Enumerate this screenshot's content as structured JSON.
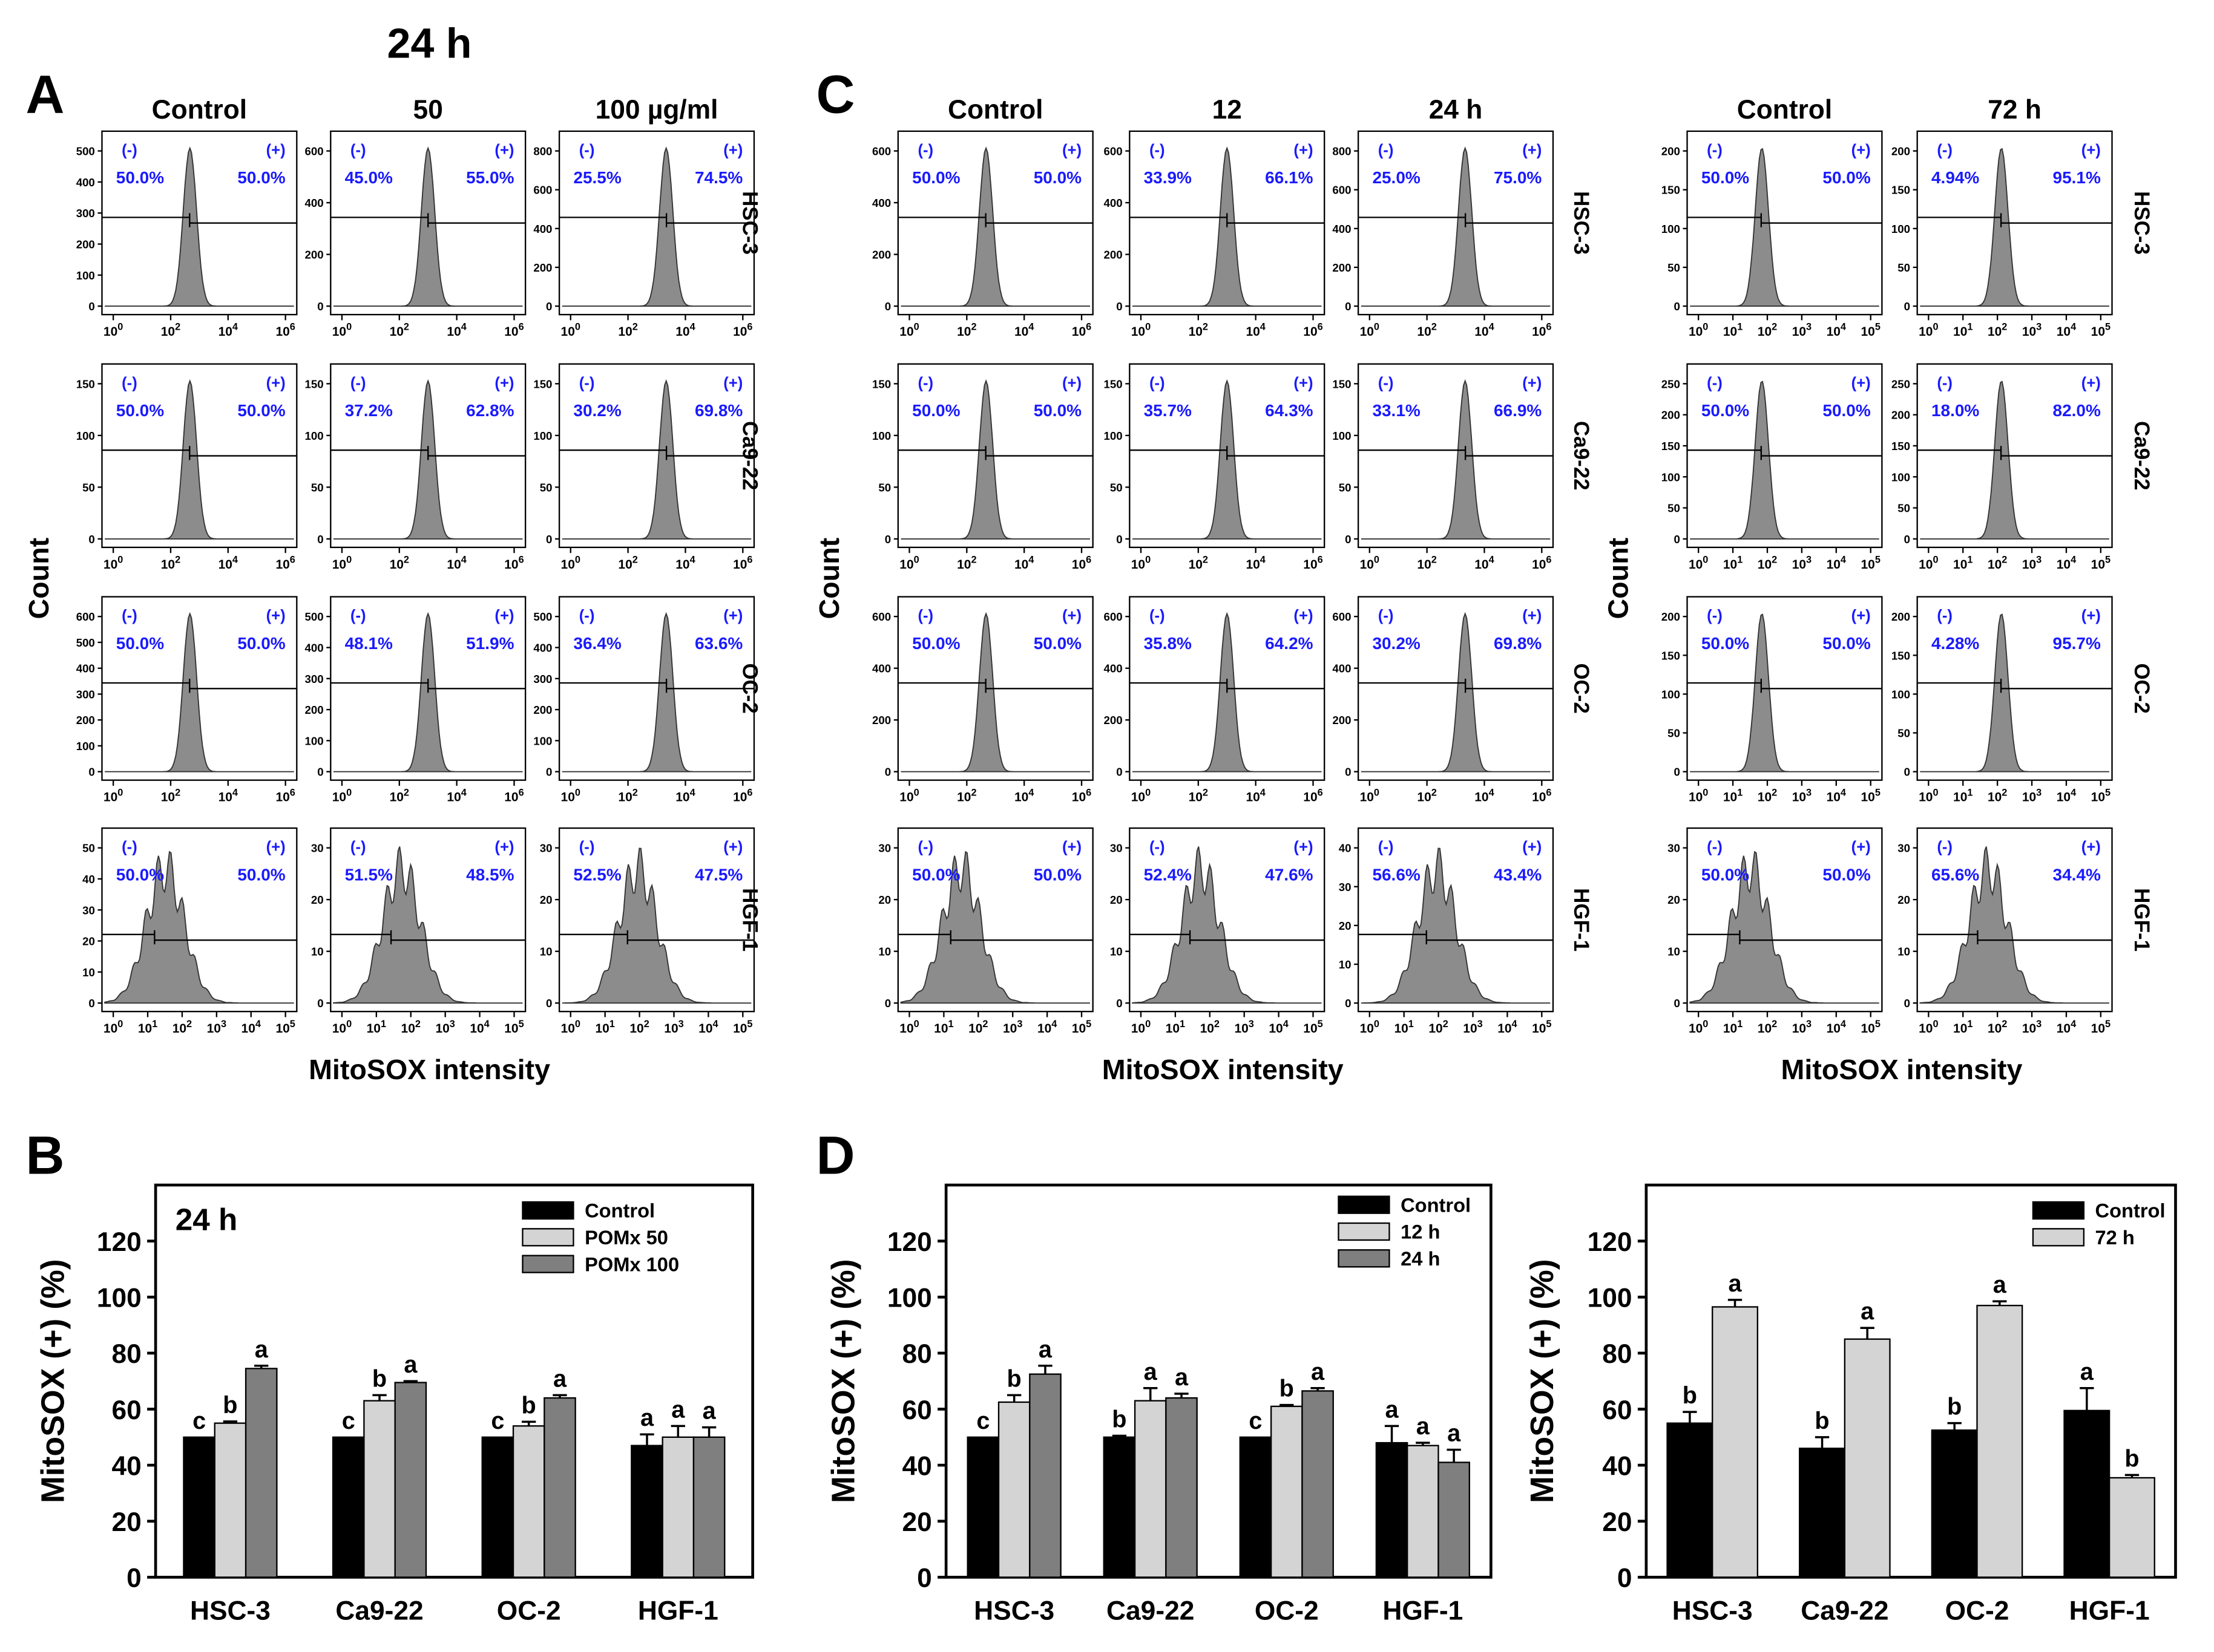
{
  "figure": {
    "panel_letters": [
      "A",
      "B",
      "C",
      "D"
    ],
    "header_24h": "24 h",
    "flow_xlabel": "MitoSOX intensity",
    "flow_ylabel": "Count",
    "bar_ylabel": "MitoSOX (+) (%)",
    "neg_label": "(-)",
    "pos_label": "(+)"
  },
  "panelA": {
    "columns": [
      "Control",
      "50",
      "100 µg/ml"
    ],
    "rows": [
      "HSC-3",
      "Ca9-22",
      "OC-2",
      "HGF-1"
    ],
    "neg_pct": [
      [
        "50.0%",
        "45.0%",
        "25.5%"
      ],
      [
        "50.0%",
        "37.2%",
        "30.2%"
      ],
      [
        "50.0%",
        "48.1%",
        "36.4%"
      ],
      [
        "50.0%",
        "51.5%",
        "52.5%"
      ]
    ],
    "pos_pct": [
      [
        "50.0%",
        "55.0%",
        "74.5%"
      ],
      [
        "50.0%",
        "62.8%",
        "69.8%"
      ],
      [
        "50.0%",
        "51.9%",
        "63.6%"
      ],
      [
        "50.0%",
        "48.5%",
        "47.5%"
      ]
    ],
    "y_ticks": [
      [
        [
          "0",
          "100",
          "200",
          "300",
          "400",
          "500"
        ],
        [
          "0",
          "200",
          "400",
          "600"
        ],
        [
          "0",
          "200",
          "400",
          "600",
          "800"
        ]
      ],
      [
        [
          "0",
          "50",
          "100",
          "150"
        ],
        [
          "0",
          "50",
          "100",
          "150"
        ],
        [
          "0",
          "50",
          "100",
          "150"
        ]
      ],
      [
        [
          "0",
          "100",
          "200",
          "300",
          "400",
          "500",
          "600"
        ],
        [
          "0",
          "100",
          "200",
          "300",
          "400",
          "500"
        ],
        [
          "0",
          "100",
          "200",
          "300",
          "400",
          "500"
        ]
      ],
      [
        [
          "0",
          "10",
          "20",
          "30",
          "40",
          "50"
        ],
        [
          "0",
          "10",
          "20",
          "30"
        ],
        [
          "0",
          "10",
          "20",
          "30"
        ]
      ]
    ],
    "x_exponents": [
      [
        "0",
        "2",
        "4",
        "6"
      ],
      [
        "0",
        "2",
        "4",
        "6"
      ],
      [
        "0",
        "2",
        "4",
        "6"
      ],
      [
        "0",
        "1",
        "2",
        "3",
        "4",
        "5"
      ]
    ]
  },
  "panelC": {
    "columns": [
      "Control",
      "12",
      "24 h"
    ],
    "rows": [
      "HSC-3",
      "Ca9-22",
      "OC-2",
      "HGF-1"
    ],
    "neg_pct": [
      [
        "50.0%",
        "33.9%",
        "25.0%"
      ],
      [
        "50.0%",
        "35.7%",
        "33.1%"
      ],
      [
        "50.0%",
        "35.8%",
        "30.2%"
      ],
      [
        "50.0%",
        "52.4%",
        "56.6%"
      ]
    ],
    "pos_pct": [
      [
        "50.0%",
        "66.1%",
        "75.0%"
      ],
      [
        "50.0%",
        "64.3%",
        "66.9%"
      ],
      [
        "50.0%",
        "64.2%",
        "69.8%"
      ],
      [
        "50.0%",
        "47.6%",
        "43.4%"
      ]
    ],
    "y_ticks": [
      [
        [
          "0",
          "200",
          "400",
          "600"
        ],
        [
          "0",
          "200",
          "400",
          "600"
        ],
        [
          "0",
          "200",
          "400",
          "600",
          "800"
        ]
      ],
      [
        [
          "0",
          "50",
          "100",
          "150"
        ],
        [
          "0",
          "50",
          "100",
          "150"
        ],
        [
          "0",
          "50",
          "100",
          "150"
        ]
      ],
      [
        [
          "0",
          "200",
          "400",
          "600"
        ],
        [
          "0",
          "200",
          "400",
          "600"
        ],
        [
          "0",
          "200",
          "400",
          "600"
        ]
      ],
      [
        [
          "0",
          "10",
          "20",
          "30"
        ],
        [
          "0",
          "10",
          "20",
          "30"
        ],
        [
          "0",
          "10",
          "20",
          "30",
          "40"
        ]
      ]
    ],
    "x_exponents": [
      [
        "0",
        "2",
        "4",
        "6"
      ],
      [
        "0",
        "2",
        "4",
        "6"
      ],
      [
        "0",
        "2",
        "4",
        "6"
      ],
      [
        "0",
        "1",
        "2",
        "3",
        "4",
        "5"
      ]
    ]
  },
  "panelC2": {
    "columns": [
      "Control",
      "72 h"
    ],
    "rows": [
      "HSC-3",
      "Ca9-22",
      "OC-2",
      "HGF-1"
    ],
    "neg_pct": [
      [
        "50.0%",
        "4.94%"
      ],
      [
        "50.0%",
        "18.0%"
      ],
      [
        "50.0%",
        "4.28%"
      ],
      [
        "50.0%",
        "65.6%"
      ]
    ],
    "pos_pct": [
      [
        "50.0%",
        "95.1%"
      ],
      [
        "50.0%",
        "82.0%"
      ],
      [
        "50.0%",
        "95.7%"
      ],
      [
        "50.0%",
        "34.4%"
      ]
    ],
    "y_ticks": [
      [
        [
          "0",
          "50",
          "100",
          "150",
          "200"
        ],
        [
          "0",
          "50",
          "100",
          "150",
          "200"
        ]
      ],
      [
        [
          "0",
          "50",
          "100",
          "150",
          "200",
          "250"
        ],
        [
          "0",
          "50",
          "100",
          "150",
          "200",
          "250"
        ]
      ],
      [
        [
          "0",
          "50",
          "100",
          "150",
          "200"
        ],
        [
          "0",
          "50",
          "100",
          "150",
          "200"
        ]
      ],
      [
        [
          "0",
          "10",
          "20",
          "30"
        ],
        [
          "0",
          "10",
          "20",
          "30"
        ]
      ]
    ],
    "x_exponents": [
      [
        "0",
        "1",
        "2",
        "3",
        "4",
        "5"
      ],
      [
        "0",
        "1",
        "2",
        "3",
        "4",
        "5"
      ],
      [
        "0",
        "1",
        "2",
        "3",
        "4",
        "5"
      ],
      [
        "0",
        "1",
        "2",
        "3",
        "4",
        "5"
      ]
    ]
  },
  "chart_data": [
    {
      "type": "bar",
      "title": "24 h",
      "categories": [
        "HSC-3",
        "Ca9-22",
        "OC-2",
        "HGF-1"
      ],
      "series": [
        {
          "name": "Control",
          "color": "#000000",
          "values": [
            50,
            50,
            50,
            47
          ],
          "errors": [
            0,
            0,
            0,
            4
          ],
          "letters": [
            "c",
            "c",
            "c",
            "a"
          ]
        },
        {
          "name": "POMx 50",
          "color": "#d4d4d4",
          "values": [
            55,
            63,
            54,
            50
          ],
          "errors": [
            0.6,
            2,
            1.5,
            4
          ],
          "letters": [
            "b",
            "b",
            "b",
            "a"
          ]
        },
        {
          "name": "POMx 100",
          "color": "#7f7f7f",
          "values": [
            74.5,
            69.5,
            64,
            50
          ],
          "errors": [
            1,
            0.5,
            1,
            3.5
          ],
          "letters": [
            "a",
            "a",
            "a",
            "a"
          ]
        }
      ],
      "ylabel": "MitoSOX (+) (%)",
      "ylim": [
        0,
        140
      ],
      "yticks": [
        "0",
        "20",
        "40",
        "60",
        "80",
        "100",
        "120"
      ]
    },
    {
      "type": "bar",
      "title": "",
      "categories": [
        "HSC-3",
        "Ca9-22",
        "OC-2",
        "HGF-1"
      ],
      "series": [
        {
          "name": "Control",
          "color": "#000000",
          "values": [
            50,
            50,
            50,
            48
          ],
          "errors": [
            0,
            0.5,
            0,
            6
          ],
          "letters": [
            "c",
            "b",
            "c",
            "a"
          ]
        },
        {
          "name": "12 h",
          "color": "#d4d4d4",
          "values": [
            62.5,
            63,
            61,
            47
          ],
          "errors": [
            2.5,
            4.5,
            0.5,
            1
          ],
          "letters": [
            "b",
            "a",
            "b",
            "a"
          ]
        },
        {
          "name": "24 h",
          "color": "#7f7f7f",
          "values": [
            72.5,
            64,
            66.5,
            41
          ],
          "errors": [
            3,
            1.5,
            1,
            4.5
          ],
          "letters": [
            "a",
            "a",
            "a",
            "a"
          ]
        }
      ],
      "ylabel": "MitoSOX (+) (%)",
      "ylim": [
        0,
        140
      ],
      "yticks": [
        "0",
        "20",
        "40",
        "60",
        "80",
        "100",
        "120"
      ]
    },
    {
      "type": "bar",
      "title": "",
      "categories": [
        "HSC-3",
        "Ca9-22",
        "OC-2",
        "HGF-1"
      ],
      "series": [
        {
          "name": "Control",
          "color": "#000000",
          "values": [
            55,
            46,
            52.5,
            59.5
          ],
          "errors": [
            4,
            4,
            2.5,
            8
          ],
          "letters": [
            "b",
            "b",
            "b",
            "a"
          ]
        },
        {
          "name": "72 h",
          "color": "#d4d4d4",
          "values": [
            96.5,
            85,
            97,
            35.5
          ],
          "errors": [
            2.5,
            4,
            1.5,
            1
          ],
          "letters": [
            "a",
            "a",
            "a",
            "b"
          ]
        }
      ],
      "ylabel": "MitoSOX (+) (%)",
      "ylim": [
        0,
        140
      ],
      "yticks": [
        "0",
        "20",
        "40",
        "60",
        "80",
        "100",
        "120"
      ]
    }
  ]
}
